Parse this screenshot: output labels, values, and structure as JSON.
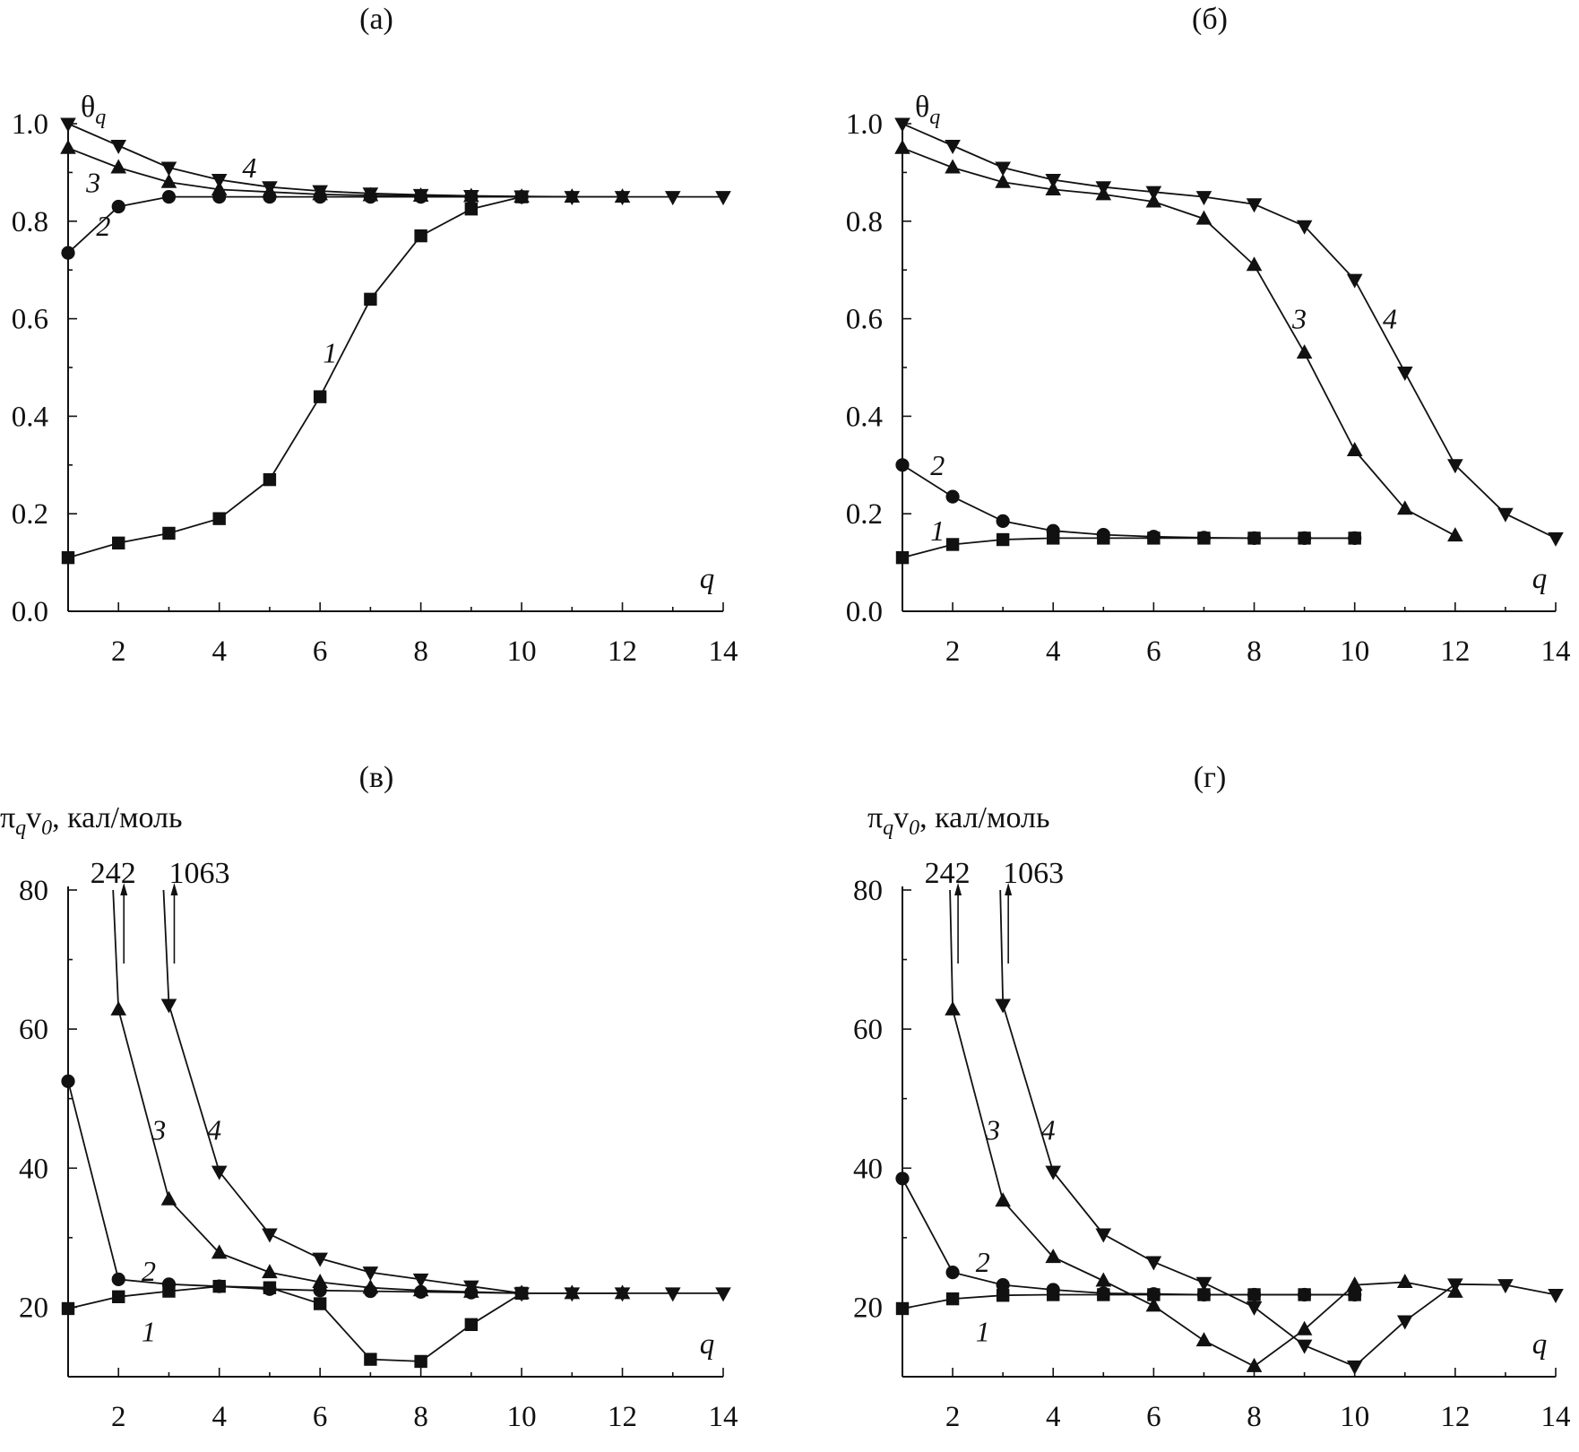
{
  "chart_data": [
    {
      "id": "a",
      "panel_label": "(а)",
      "type": "line",
      "ylabel": "θ",
      "ylabel_sub": "q",
      "ylabel_tail": "",
      "xlabel": "q",
      "xlim": [
        1,
        14
      ],
      "ylim": [
        0,
        1.0
      ],
      "xticks": [
        2,
        4,
        6,
        8,
        10,
        12,
        14
      ],
      "yticks": [
        0.0,
        0.2,
        0.4,
        0.6,
        0.8,
        1.0
      ],
      "ytick_labels": [
        "0.0",
        "0.2",
        "0.4",
        "0.6",
        "0.8",
        "1.0"
      ],
      "series": [
        {
          "label": "1",
          "marker": "square",
          "x": [
            1,
            2,
            3,
            4,
            5,
            6,
            7,
            8,
            9,
            10
          ],
          "y": [
            0.11,
            0.14,
            0.16,
            0.19,
            0.27,
            0.44,
            0.64,
            0.77,
            0.825,
            0.85
          ]
        },
        {
          "label": "2",
          "marker": "circle",
          "x": [
            1,
            2,
            3,
            4,
            5,
            6,
            7,
            8,
            9,
            10
          ],
          "y": [
            0.735,
            0.83,
            0.85,
            0.85,
            0.85,
            0.85,
            0.85,
            0.85,
            0.85,
            0.85
          ]
        },
        {
          "label": "3",
          "marker": "triangle-up",
          "x": [
            1,
            2,
            3,
            4,
            5,
            6,
            7,
            8,
            9,
            10,
            11,
            12
          ],
          "y": [
            0.95,
            0.91,
            0.88,
            0.865,
            0.86,
            0.855,
            0.853,
            0.852,
            0.851,
            0.85,
            0.85,
            0.85
          ]
        },
        {
          "label": "4",
          "marker": "triangle-down",
          "x": [
            1,
            2,
            3,
            4,
            5,
            6,
            7,
            8,
            9,
            10,
            11,
            12,
            13,
            14
          ],
          "y": [
            1.0,
            0.955,
            0.91,
            0.885,
            0.87,
            0.862,
            0.857,
            0.854,
            0.852,
            0.851,
            0.85,
            0.85,
            0.85,
            0.85
          ]
        }
      ]
    },
    {
      "id": "b",
      "panel_label": "(б)",
      "type": "line",
      "ylabel": "θ",
      "ylabel_sub": "q",
      "ylabel_tail": "",
      "xlabel": "q",
      "xlim": [
        1,
        14
      ],
      "ylim": [
        0,
        1.0
      ],
      "xticks": [
        2,
        4,
        6,
        8,
        10,
        12,
        14
      ],
      "yticks": [
        0.0,
        0.2,
        0.4,
        0.6,
        0.8,
        1.0
      ],
      "ytick_labels": [
        "0.0",
        "0.2",
        "0.4",
        "0.6",
        "0.8",
        "1.0"
      ],
      "series": [
        {
          "label": "1",
          "marker": "square",
          "x": [
            1,
            2,
            3,
            4,
            5,
            6,
            7,
            8,
            9,
            10
          ],
          "y": [
            0.11,
            0.137,
            0.147,
            0.15,
            0.15,
            0.15,
            0.15,
            0.15,
            0.15,
            0.15
          ]
        },
        {
          "label": "2",
          "marker": "circle",
          "x": [
            1,
            2,
            3,
            4,
            5,
            6,
            7,
            8,
            9,
            10
          ],
          "y": [
            0.3,
            0.235,
            0.185,
            0.165,
            0.157,
            0.153,
            0.151,
            0.15,
            0.15,
            0.15
          ]
        },
        {
          "label": "3",
          "marker": "triangle-up",
          "x": [
            1,
            2,
            3,
            4,
            5,
            6,
            7,
            8,
            9,
            10,
            11,
            12
          ],
          "y": [
            0.95,
            0.91,
            0.88,
            0.865,
            0.855,
            0.84,
            0.805,
            0.71,
            0.53,
            0.33,
            0.21,
            0.155
          ]
        },
        {
          "label": "4",
          "marker": "triangle-down",
          "x": [
            1,
            2,
            3,
            4,
            5,
            6,
            7,
            8,
            9,
            10,
            11,
            12,
            13,
            14
          ],
          "y": [
            1.0,
            0.955,
            0.91,
            0.885,
            0.87,
            0.86,
            0.85,
            0.835,
            0.79,
            0.68,
            0.49,
            0.3,
            0.2,
            0.15
          ]
        }
      ]
    },
    {
      "id": "v",
      "panel_label": "(в)",
      "type": "line",
      "ylabel": "π",
      "ylabel_sub": "q",
      "ylabel_tail": "v",
      "ylabel_tail_sub": "0",
      "ylabel_unit": ", кал/моль",
      "xlabel": "q",
      "xlim": [
        1,
        14
      ],
      "ylim": [
        10,
        80
      ],
      "xticks": [
        2,
        4,
        6,
        8,
        10,
        12,
        14
      ],
      "yticks": [
        20,
        40,
        60,
        80
      ],
      "ytick_labels": [
        "20",
        "40",
        "60",
        "80"
      ],
      "offscale_labels": [
        {
          "text": "242",
          "x": 2
        },
        {
          "text": "1063",
          "x": 3
        }
      ],
      "series": [
        {
          "label": "1",
          "marker": "square",
          "x": [
            1,
            2,
            3,
            4,
            5,
            6,
            7,
            8,
            9,
            10
          ],
          "y": [
            19.8,
            21.5,
            22.3,
            23.0,
            22.8,
            20.5,
            12.5,
            12.2,
            17.5,
            22.0
          ]
        },
        {
          "label": "2",
          "marker": "circle",
          "x": [
            1,
            2,
            3,
            4,
            5,
            6,
            7,
            8,
            9,
            10
          ],
          "y": [
            52.5,
            24.0,
            23.3,
            23.0,
            22.6,
            22.4,
            22.3,
            22.2,
            22.1,
            22.0
          ]
        },
        {
          "label": "3",
          "marker": "triangle-up",
          "x": [
            2,
            3,
            4,
            5,
            6,
            7,
            8,
            9,
            10,
            11,
            12
          ],
          "y": [
            62.8,
            35.5,
            27.8,
            25.0,
            23.6,
            22.8,
            22.4,
            22.2,
            22.0,
            22.0,
            22.0
          ]
        },
        {
          "label": "4",
          "marker": "triangle-down",
          "x": [
            3,
            4,
            5,
            6,
            7,
            8,
            9,
            10,
            11,
            12,
            13,
            14
          ],
          "y": [
            63.5,
            39.5,
            30.5,
            27.0,
            25.0,
            24.0,
            23.0,
            22.0,
            22.0,
            22.0,
            22.0,
            22.0
          ]
        }
      ]
    },
    {
      "id": "g",
      "panel_label": "(г)",
      "type": "line",
      "ylabel": "π",
      "ylabel_sub": "q",
      "ylabel_tail": "v",
      "ylabel_tail_sub": "0",
      "ylabel_unit": ", кал/моль",
      "xlabel": "q",
      "xlim": [
        1,
        14
      ],
      "ylim": [
        10,
        80
      ],
      "xticks": [
        2,
        4,
        6,
        8,
        10,
        12,
        14
      ],
      "yticks": [
        20,
        40,
        60,
        80
      ],
      "ytick_labels": [
        "20",
        "40",
        "60",
        "80"
      ],
      "offscale_labels": [
        {
          "text": "242",
          "x": 2
        },
        {
          "text": "1063",
          "x": 3
        }
      ],
      "series": [
        {
          "label": "1",
          "marker": "square",
          "x": [
            1,
            2,
            3,
            4,
            5,
            6,
            7,
            8,
            9,
            10
          ],
          "y": [
            19.8,
            21.2,
            21.7,
            21.8,
            21.8,
            21.8,
            21.8,
            21.8,
            21.8,
            21.8
          ]
        },
        {
          "label": "2",
          "marker": "circle",
          "x": [
            1,
            2,
            3,
            4,
            5,
            6,
            7,
            8,
            9,
            10
          ],
          "y": [
            38.5,
            25.0,
            23.2,
            22.5,
            22.0,
            21.9,
            21.8,
            21.8,
            21.8,
            21.8
          ]
        },
        {
          "label": "3",
          "marker": "triangle-up",
          "x": [
            2,
            3,
            4,
            5,
            6,
            7,
            8,
            9,
            10,
            11,
            12
          ],
          "y": [
            62.8,
            35.3,
            27.2,
            23.8,
            20.2,
            15.2,
            11.5,
            16.8,
            23.2,
            23.6,
            22.2
          ]
        },
        {
          "label": "4",
          "marker": "triangle-down",
          "x": [
            3,
            4,
            5,
            6,
            7,
            8,
            9,
            10,
            11,
            12,
            13,
            14
          ],
          "y": [
            63.5,
            39.5,
            30.5,
            26.5,
            23.5,
            20.0,
            14.5,
            11.5,
            18.0,
            23.3,
            23.2,
            21.8
          ]
        }
      ]
    }
  ]
}
